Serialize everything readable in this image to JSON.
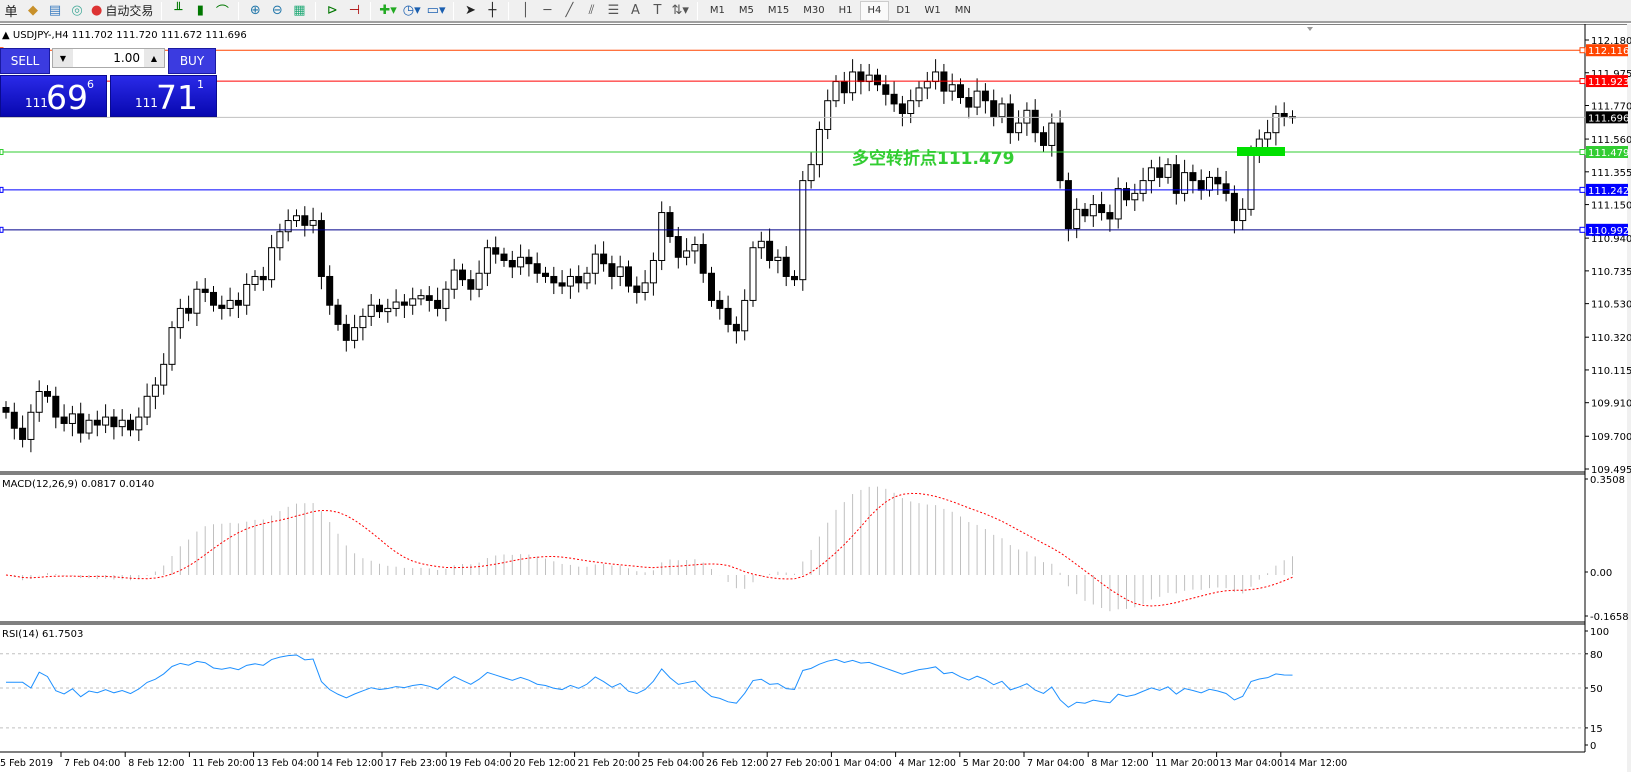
{
  "toolbar": {
    "menu_fragment": "单",
    "auto_trading_label": "自动交易",
    "timeframes": [
      "M1",
      "M5",
      "M15",
      "M30",
      "H1",
      "H4",
      "D1",
      "W1",
      "MN"
    ],
    "active_timeframe": "H4",
    "tools": [
      "bar-chart-icon",
      "candlestick-icon",
      "line-chart-icon",
      "zoom-in-icon",
      "zoom-out-icon",
      "tile-windows-icon",
      "auto-scroll-icon",
      "chart-shift-icon",
      "indicators-icon",
      "periods-icon",
      "templates-icon",
      "cursor-icon",
      "crosshair-icon",
      "vertical-line-icon",
      "horizontal-line-icon",
      "trendline-icon",
      "equidistant-channel-icon",
      "fibonacci-icon",
      "text-icon",
      "text-label-icon",
      "arrows-icon"
    ]
  },
  "chart": {
    "title": "USDJPY-,H4  111.702 111.720 111.672 111.696",
    "annotation": "多空转折点111.479",
    "colors": {
      "up": "#ffffff",
      "down": "#000000",
      "bid": "#c0c0c0",
      "annotation": "#32cd32"
    }
  },
  "trade_panel": {
    "sell_label": "SELL",
    "buy_label": "BUY",
    "lot": "1.00",
    "sell_price": {
      "small": "111",
      "big": "69",
      "pip": "6"
    },
    "buy_price": {
      "small": "111",
      "big": "71",
      "pip": "1"
    }
  },
  "levels": [
    {
      "value": "112.116",
      "color": "#ff4500"
    },
    {
      "value": "111.923",
      "color": "#ff0000"
    },
    {
      "value": "111.696",
      "color": "#000000",
      "line": "#c0c0c0"
    },
    {
      "value": "111.479",
      "color": "#32cd32"
    },
    {
      "value": "111.242",
      "color": "#0000ff"
    },
    {
      "value": "110.992",
      "color": "#0000ff",
      "line": "#00008b"
    }
  ],
  "price_axis": [
    "112.180",
    "111.975",
    "111.770",
    "111.560",
    "111.355",
    "111.150",
    "110.940",
    "110.735",
    "110.530",
    "110.320",
    "110.115",
    "109.910",
    "109.700",
    "109.495"
  ],
  "macd": {
    "label": "MACD(12,26,9) 0.0817 0.0140",
    "axis": [
      "0.3508",
      "0.00",
      "-0.1658"
    ],
    "range": [
      -0.1658,
      0.3508
    ]
  },
  "rsi": {
    "label": "RSI(14) 61.7503",
    "axis": [
      "100",
      "80",
      "50",
      "15",
      "0"
    ],
    "levels": [
      80,
      50,
      15
    ]
  },
  "time_axis": [
    "5 Feb 2019",
    "7 Feb 04:00",
    "8 Feb 12:00",
    "11 Feb 20:00",
    "13 Feb 04:00",
    "14 Feb 12:00",
    "17 Feb 23:00",
    "19 Feb 04:00",
    "20 Feb 12:00",
    "21 Feb 20:00",
    "25 Feb 04:00",
    "26 Feb 12:00",
    "27 Feb 20:00",
    "1 Mar 04:00",
    "4 Mar 12:00",
    "5 Mar 20:00",
    "7 Mar 04:00",
    "8 Mar 12:00",
    "11 Mar 20:00",
    "13 Mar 04:00",
    "14 Mar 12:00"
  ],
  "chart_data": {
    "type": "candlestick",
    "symbol": "USDJPY-",
    "timeframe": "H4",
    "ylim": [
      109.495,
      112.18
    ],
    "close": [
      109.85,
      109.75,
      109.68,
      109.85,
      109.98,
      109.95,
      109.82,
      109.78,
      109.84,
      109.72,
      109.8,
      109.77,
      109.82,
      109.76,
      109.8,
      109.74,
      109.82,
      109.95,
      110.02,
      110.15,
      110.38,
      110.5,
      110.47,
      110.62,
      110.6,
      110.52,
      110.5,
      110.55,
      110.52,
      110.65,
      110.7,
      110.68,
      110.88,
      110.98,
      111.05,
      111.08,
      111.02,
      111.05,
      110.7,
      110.52,
      110.4,
      110.3,
      110.38,
      110.45,
      110.52,
      110.48,
      110.5,
      110.54,
      110.52,
      110.56,
      110.58,
      110.55,
      110.5,
      110.62,
      110.74,
      110.68,
      110.62,
      110.72,
      110.88,
      110.84,
      110.8,
      110.76,
      110.82,
      110.78,
      110.72,
      110.7,
      110.66,
      110.64,
      110.7,
      110.66,
      110.72,
      110.84,
      110.78,
      110.7,
      110.76,
      110.64,
      110.6,
      110.66,
      110.8,
      111.1,
      110.95,
      110.82,
      110.86,
      110.9,
      110.72,
      110.55,
      110.5,
      110.4,
      110.36,
      110.55,
      110.88,
      110.92,
      110.8,
      110.82,
      110.7,
      110.68,
      111.3,
      111.4,
      111.62,
      111.8,
      111.92,
      111.85,
      111.98,
      111.92,
      111.96,
      111.9,
      111.84,
      111.78,
      111.72,
      111.8,
      111.88,
      111.92,
      111.98,
      111.86,
      111.9,
      111.82,
      111.76,
      111.86,
      111.8,
      111.7,
      111.78,
      111.6,
      111.66,
      111.74,
      111.6,
      111.52,
      111.66,
      111.3,
      111.0,
      111.12,
      111.08,
      111.15,
      111.1,
      111.06,
      111.25,
      111.18,
      111.22,
      111.3,
      111.38,
      111.32,
      111.4,
      111.22,
      111.35,
      111.3,
      111.24,
      111.32,
      111.28,
      111.22,
      111.05,
      111.12,
      111.48,
      111.56,
      111.6,
      111.72,
      111.7,
      111.696
    ]
  }
}
